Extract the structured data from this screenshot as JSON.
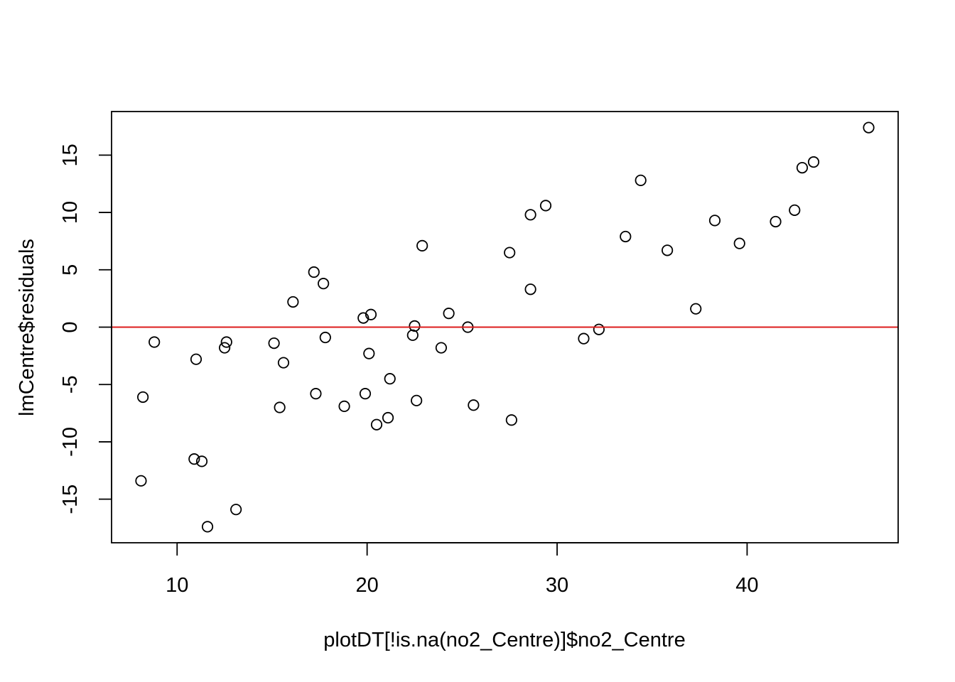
{
  "chart_data": {
    "type": "scatter",
    "xlabel": "plotDT[!is.na(no2_Centre)]$no2_Centre",
    "ylabel": "lmCentre$residuals",
    "xlim": [
      6.55,
      47.95
    ],
    "ylim": [
      -18.8,
      18.8
    ],
    "x_ticks": [
      10,
      20,
      30,
      40
    ],
    "y_ticks": [
      -15,
      -10,
      -5,
      0,
      5,
      10,
      15
    ],
    "x_tick_labels": [
      "10",
      "20",
      "30",
      "40"
    ],
    "y_tick_labels": [
      "-15",
      "-10",
      "-5",
      "0",
      "5",
      "10",
      "15"
    ],
    "grid": false,
    "reference_line": {
      "y": 0,
      "color": "#dd1c1c"
    },
    "point_color": "#000000",
    "points": [
      {
        "x": 8.1,
        "y": -13.4
      },
      {
        "x": 8.2,
        "y": -6.1
      },
      {
        "x": 8.8,
        "y": -1.3
      },
      {
        "x": 10.9,
        "y": -11.5
      },
      {
        "x": 11.0,
        "y": -2.8
      },
      {
        "x": 11.3,
        "y": -11.7
      },
      {
        "x": 11.6,
        "y": -17.4
      },
      {
        "x": 12.5,
        "y": -1.8
      },
      {
        "x": 12.6,
        "y": -1.3
      },
      {
        "x": 13.1,
        "y": -15.9
      },
      {
        "x": 15.1,
        "y": -1.4
      },
      {
        "x": 15.4,
        "y": -7.0
      },
      {
        "x": 15.6,
        "y": -3.1
      },
      {
        "x": 16.1,
        "y": 2.2
      },
      {
        "x": 17.2,
        "y": 4.8
      },
      {
        "x": 17.3,
        "y": -5.8
      },
      {
        "x": 17.7,
        "y": 3.8
      },
      {
        "x": 17.8,
        "y": -0.9
      },
      {
        "x": 18.8,
        "y": -6.9
      },
      {
        "x": 19.8,
        "y": 0.8
      },
      {
        "x": 19.9,
        "y": -5.8
      },
      {
        "x": 20.1,
        "y": -2.3
      },
      {
        "x": 20.2,
        "y": 1.1
      },
      {
        "x": 20.5,
        "y": -8.5
      },
      {
        "x": 21.1,
        "y": -7.9
      },
      {
        "x": 21.2,
        "y": -4.5
      },
      {
        "x": 22.4,
        "y": -0.7
      },
      {
        "x": 22.5,
        "y": 0.1
      },
      {
        "x": 22.6,
        "y": -6.4
      },
      {
        "x": 22.9,
        "y": 7.1
      },
      {
        "x": 23.9,
        "y": -1.8
      },
      {
        "x": 24.3,
        "y": 1.2
      },
      {
        "x": 25.3,
        "y": 0.0
      },
      {
        "x": 25.6,
        "y": -6.8
      },
      {
        "x": 27.5,
        "y": 6.5
      },
      {
        "x": 27.6,
        "y": -8.1
      },
      {
        "x": 28.6,
        "y": 9.8
      },
      {
        "x": 28.6,
        "y": 3.3
      },
      {
        "x": 29.4,
        "y": 10.6
      },
      {
        "x": 31.4,
        "y": -1.0
      },
      {
        "x": 32.2,
        "y": -0.2
      },
      {
        "x": 33.6,
        "y": 7.9
      },
      {
        "x": 34.4,
        "y": 12.8
      },
      {
        "x": 35.8,
        "y": 6.7
      },
      {
        "x": 37.3,
        "y": 1.6
      },
      {
        "x": 38.3,
        "y": 9.3
      },
      {
        "x": 39.6,
        "y": 7.3
      },
      {
        "x": 41.5,
        "y": 9.2
      },
      {
        "x": 42.5,
        "y": 10.2
      },
      {
        "x": 42.9,
        "y": 13.9
      },
      {
        "x": 43.5,
        "y": 14.4
      },
      {
        "x": 46.4,
        "y": 17.4
      }
    ]
  }
}
